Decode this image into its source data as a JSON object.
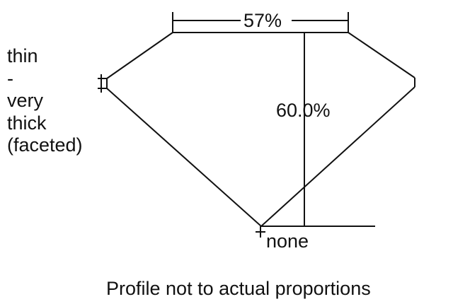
{
  "table_percent": "57%",
  "depth_percent": "60.0%",
  "culet": "none",
  "girdle": [
    "thin",
    "-",
    "very",
    "thick",
    "(faceted)"
  ],
  "note": "Profile not to actual proportions",
  "colors": {
    "line": "#111111",
    "background": "#ffffff"
  }
}
